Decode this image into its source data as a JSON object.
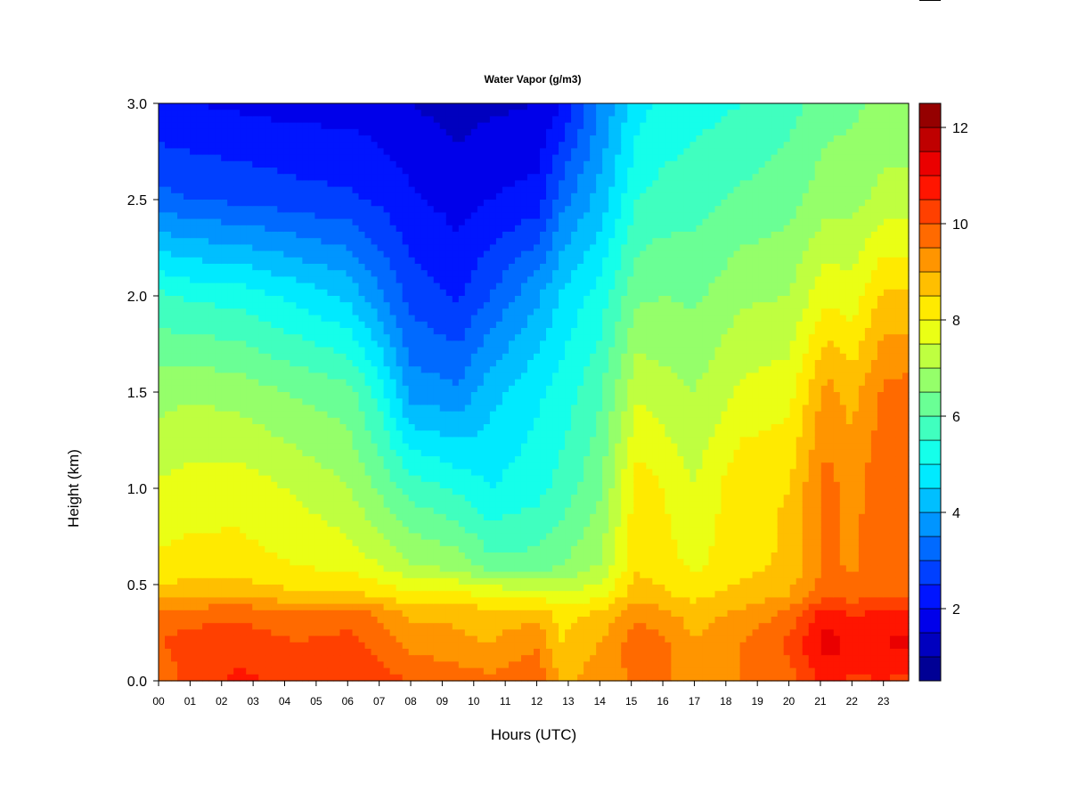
{
  "chart_data": {
    "type": "heatmap",
    "title": "Water Vapor (g/m3)",
    "xlabel": "Hours (UTC)",
    "ylabel": "Height (km)",
    "x_tick_labels": [
      "00",
      "01",
      "02",
      "03",
      "04",
      "05",
      "06",
      "07",
      "08",
      "09",
      "10",
      "11",
      "12",
      "13",
      "14",
      "15",
      "16",
      "17",
      "18",
      "19",
      "20",
      "21",
      "22",
      "23"
    ],
    "xlim": [
      0,
      23.8
    ],
    "y_ticks": [
      0.0,
      0.5,
      1.0,
      1.5,
      2.0,
      2.5,
      3.0
    ],
    "y_tick_labels": [
      "0.0",
      "0.5",
      "1.0",
      "1.5",
      "2.0",
      "2.5",
      "3.0"
    ],
    "ylim": [
      0,
      3
    ],
    "colorbar": {
      "levels": [
        0.5,
        12.5
      ],
      "n_levels": 24,
      "ticks": [
        2,
        4,
        6,
        8,
        10,
        12
      ],
      "tick_labels": [
        "2",
        "4",
        "6",
        "8",
        "10",
        "12"
      ],
      "colormap": "jet"
    },
    "profile_heights_km": [
      0.0,
      0.2,
      0.35,
      0.45,
      0.6,
      1.0,
      1.5,
      2.0,
      2.5,
      3.0
    ],
    "profiles": [
      {
        "hour": 0.0,
        "values": [
          9.5,
          10.0,
          9.6,
          8.7,
          8.1,
          7.6,
          6.8,
          5.6,
          3.2,
          2.0
        ]
      },
      {
        "hour": 1.0,
        "values": [
          10.3,
          10.2,
          9.8,
          8.8,
          8.2,
          7.7,
          6.9,
          5.4,
          3.0,
          2.0
        ]
      },
      {
        "hour": 2.5,
        "values": [
          10.6,
          10.3,
          9.9,
          8.9,
          8.2,
          7.8,
          6.8,
          5.3,
          2.9,
          1.9
        ]
      },
      {
        "hour": 4.5,
        "values": [
          10.4,
          10.0,
          9.6,
          8.5,
          8.0,
          7.4,
          6.4,
          4.8,
          2.7,
          1.8
        ]
      },
      {
        "hour": 6.0,
        "values": [
          10.4,
          10.2,
          9.7,
          8.6,
          7.8,
          7.0,
          6.2,
          4.4,
          2.6,
          1.8
        ]
      },
      {
        "hour": 7.0,
        "values": [
          10.2,
          9.8,
          9.4,
          8.4,
          7.5,
          6.4,
          5.3,
          3.6,
          2.4,
          1.7
        ]
      },
      {
        "hour": 8.0,
        "values": [
          10.0,
          9.3,
          8.9,
          8.0,
          7.0,
          5.8,
          3.8,
          2.8,
          2.1,
          1.5
        ]
      },
      {
        "hour": 9.5,
        "values": [
          9.8,
          9.1,
          8.9,
          8.1,
          6.8,
          5.4,
          3.6,
          2.4,
          1.8,
          1.3
        ]
      },
      {
        "hour": 10.5,
        "values": [
          9.6,
          9.0,
          8.7,
          7.9,
          6.2,
          5.0,
          4.3,
          3.0,
          2.0,
          1.4
        ]
      },
      {
        "hour": 12.0,
        "values": [
          10.0,
          9.4,
          8.8,
          7.8,
          6.2,
          5.3,
          4.9,
          3.9,
          2.2,
          1.5
        ]
      },
      {
        "hour": 12.8,
        "values": [
          8.8,
          8.5,
          8.3,
          7.6,
          6.5,
          5.7,
          5.2,
          4.6,
          3.3,
          2.0
        ]
      },
      {
        "hour": 14.0,
        "values": [
          9.3,
          9.0,
          8.6,
          7.8,
          7.0,
          6.4,
          5.9,
          5.2,
          4.2,
          3.5
        ]
      },
      {
        "hour": 15.2,
        "values": [
          9.6,
          9.8,
          9.4,
          8.8,
          8.4,
          8.3,
          7.4,
          6.4,
          5.5,
          4.8
        ]
      },
      {
        "hour": 16.0,
        "values": [
          9.7,
          9.6,
          9.1,
          8.6,
          8.2,
          8.0,
          7.2,
          6.5,
          5.7,
          5.1
        ]
      },
      {
        "hour": 17.0,
        "values": [
          9.0,
          9.0,
          8.8,
          8.3,
          7.9,
          7.5,
          7.0,
          6.4,
          5.8,
          5.3
        ]
      },
      {
        "hour": 18.5,
        "values": [
          9.5,
          9.5,
          9.1,
          8.7,
          8.3,
          8.4,
          7.6,
          6.9,
          6.1,
          5.5
        ]
      },
      {
        "hour": 20.0,
        "values": [
          9.8,
          10.1,
          9.6,
          9.0,
          8.6,
          8.5,
          7.8,
          7.0,
          6.3,
          5.8
        ]
      },
      {
        "hour": 21.2,
        "values": [
          10.7,
          11.3,
          10.8,
          9.9,
          9.6,
          9.7,
          9.2,
          7.9,
          6.8,
          6.3
        ]
      },
      {
        "hour": 22.0,
        "values": [
          10.4,
          10.9,
          10.4,
          9.7,
          9.4,
          9.3,
          8.8,
          7.7,
          6.8,
          6.4
        ]
      },
      {
        "hour": 23.0,
        "values": [
          10.5,
          11.0,
          10.6,
          10.0,
          9.8,
          9.9,
          9.6,
          8.6,
          7.2,
          6.6
        ]
      },
      {
        "hour": 23.8,
        "values": [
          10.3,
          11.2,
          10.5,
          9.8,
          9.8,
          9.8,
          9.7,
          8.6,
          7.2,
          6.6
        ]
      }
    ]
  }
}
